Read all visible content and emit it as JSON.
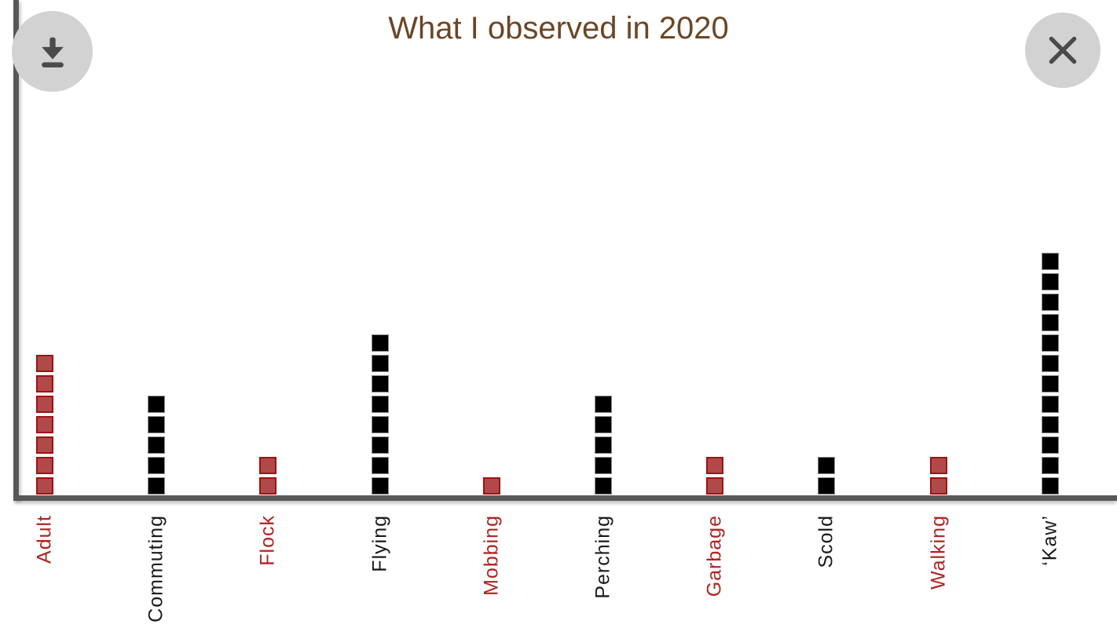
{
  "header": {
    "title": "What I observed in 2020"
  },
  "ui_colors": {
    "title_text": "#6b4626",
    "button_background": "#d2d2d2",
    "icon": "#4a4a4a",
    "axis": "#58585a"
  },
  "chart_data": {
    "type": "bar",
    "variant": "unit_square_pictogram",
    "title": "What I observed in 2020",
    "categories": [
      "Adult",
      "Commuting",
      "Flock",
      "Flying",
      "Mobbing",
      "Perching",
      "Garbage",
      "Scold",
      "Walking",
      "‘Kaw’"
    ],
    "values": [
      7,
      5,
      2,
      8,
      1,
      5,
      2,
      2,
      2,
      12
    ],
    "bar_colors": [
      "red",
      "black",
      "red",
      "black",
      "red",
      "black",
      "red",
      "black",
      "red",
      "black"
    ],
    "palette": {
      "red": {
        "fill": "#b04a49",
        "border": "#a01113",
        "label": "#b22222"
      },
      "black": {
        "fill": "#000000",
        "border": "#8a8a8a",
        "label": "#1a1a1a"
      }
    },
    "units_per_square": 1,
    "xlabel": "",
    "ylabel": "",
    "ylim": [
      0,
      12
    ],
    "grid": false,
    "legend": false,
    "tick_label_rotation_deg": 90
  }
}
